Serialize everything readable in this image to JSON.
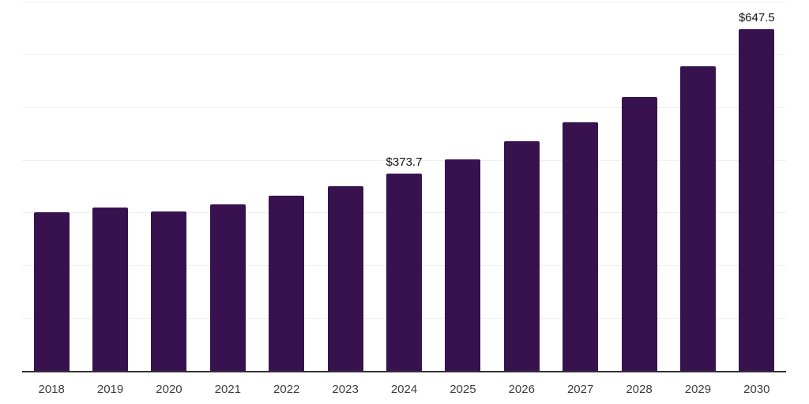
{
  "chart_data": {
    "type": "bar",
    "title": "",
    "xlabel": "",
    "ylabel": "",
    "categories": [
      "2018",
      "2019",
      "2020",
      "2021",
      "2022",
      "2023",
      "2024",
      "2025",
      "2026",
      "2027",
      "2028",
      "2029",
      "2030"
    ],
    "values": [
      300,
      310,
      302,
      316,
      332,
      350,
      373.7,
      401,
      435,
      471,
      519,
      577,
      647.5
    ],
    "data_labels": [
      "",
      "",
      "",
      "",
      "",
      "",
      "$373.7",
      "",
      "",
      "",
      "",
      "",
      "$647.5"
    ],
    "value_prefix": "$",
    "ylim": [
      0,
      700
    ],
    "grid_interval": 100,
    "grid": "horizontal-only",
    "legend_position": "none",
    "colors": {
      "bar": "#38124E",
      "grid": "#f0f0f0",
      "axis": "#303030",
      "tick_label": "#3d3d3d",
      "value_label": "#111111",
      "background": "#ffffff"
    }
  }
}
